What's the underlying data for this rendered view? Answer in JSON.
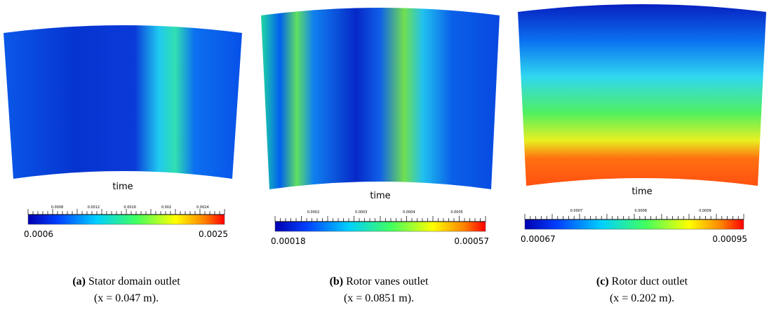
{
  "panels": [
    {
      "axis_label": "time",
      "colorbar_min": "0.0006",
      "colorbar_max": "0.0025",
      "colorbar_ticks": [
        "0.0008",
        "0.0012",
        "0.0016",
        "0.002",
        "0.0024"
      ],
      "caption_letter": "(a)",
      "caption_text": "Stator domain outlet",
      "caption_position": "(x = 0.047 m)."
    },
    {
      "axis_label": "time",
      "colorbar_min": "0.00018",
      "colorbar_max": "0.00057",
      "colorbar_ticks": [
        "0.0002",
        "0.0003",
        "0.0004",
        "0.0005"
      ],
      "caption_letter": "(b)",
      "caption_text": "Rotor vanes outlet",
      "caption_position": "(x = 0.0851 m)."
    },
    {
      "axis_label": "time",
      "colorbar_min": "0.00067",
      "colorbar_max": "0.00095",
      "colorbar_ticks": [
        "0.0007",
        "0.0008",
        "0.0009"
      ],
      "caption_letter": "(c)",
      "caption_text": "Rotor duct outlet",
      "caption_position": "(x = 0.202 m)."
    }
  ]
}
